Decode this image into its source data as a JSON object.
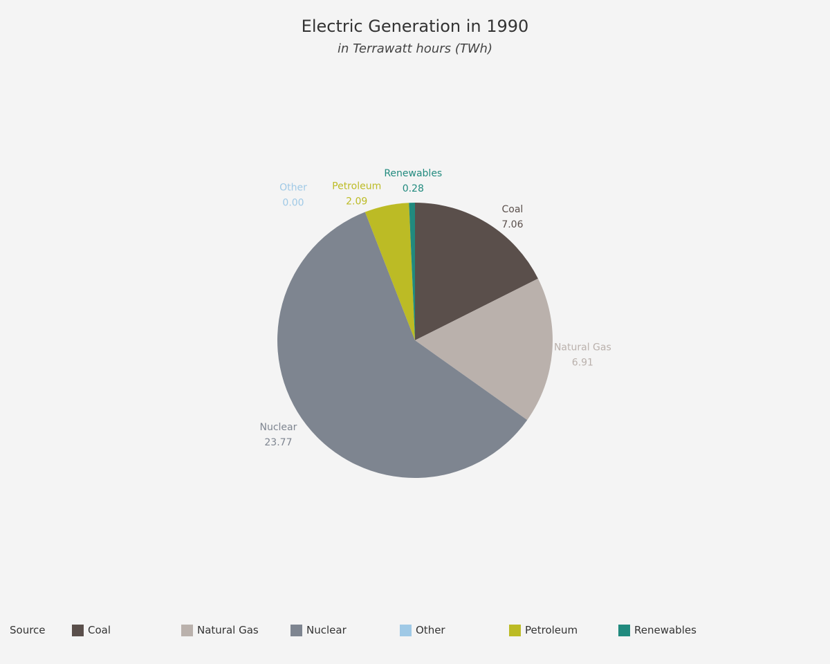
{
  "chart_data": {
    "type": "pie",
    "title": "Electric Generation in 1990",
    "subtitle": "in Terrawatt hours (TWh)",
    "legend_title": "Source",
    "legend_position": "bottom",
    "categories": [
      "Coal",
      "Natural Gas",
      "Nuclear",
      "Other",
      "Petroleum",
      "Renewables"
    ],
    "values": [
      7.06,
      6.91,
      23.77,
      0.0,
      2.09,
      0.28
    ],
    "labels": [
      "7.06",
      "6.91",
      "23.77",
      "0.00",
      "2.09",
      "0.28"
    ],
    "colors": [
      "#5a4f4b",
      "#bab1ac",
      "#7e8590",
      "#9fc9e6",
      "#bcbb25",
      "#218a7e"
    ]
  }
}
